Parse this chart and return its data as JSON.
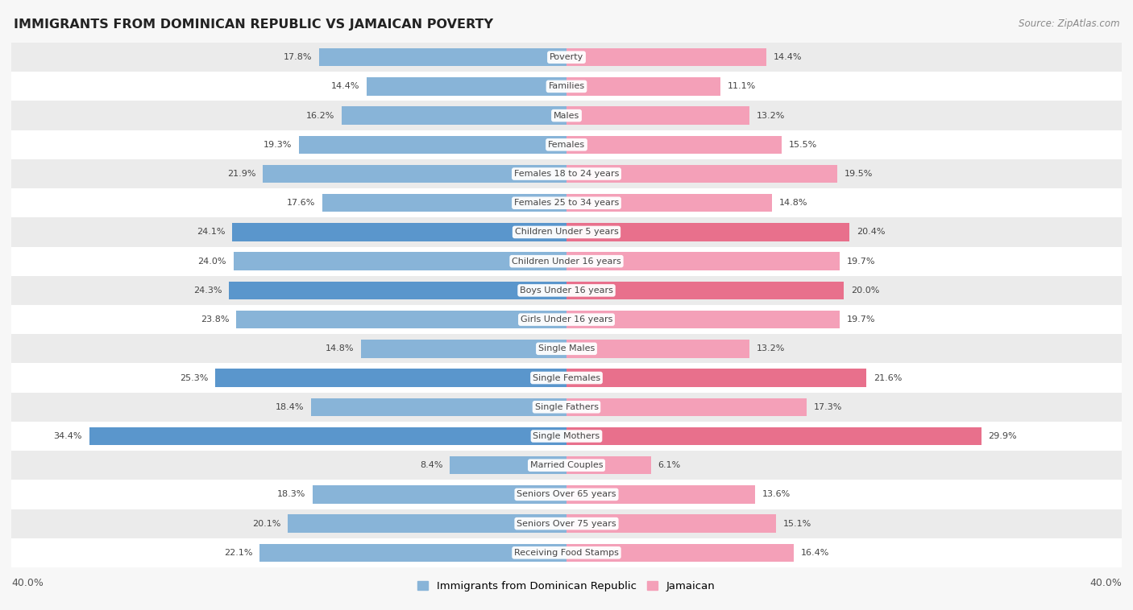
{
  "title": "IMMIGRANTS FROM DOMINICAN REPUBLIC VS JAMAICAN POVERTY",
  "source": "Source: ZipAtlas.com",
  "categories": [
    "Poverty",
    "Families",
    "Males",
    "Females",
    "Females 18 to 24 years",
    "Females 25 to 34 years",
    "Children Under 5 years",
    "Children Under 16 years",
    "Boys Under 16 years",
    "Girls Under 16 years",
    "Single Males",
    "Single Females",
    "Single Fathers",
    "Single Mothers",
    "Married Couples",
    "Seniors Over 65 years",
    "Seniors Over 75 years",
    "Receiving Food Stamps"
  ],
  "dominican": [
    17.8,
    14.4,
    16.2,
    19.3,
    21.9,
    17.6,
    24.1,
    24.0,
    24.3,
    23.8,
    14.8,
    25.3,
    18.4,
    34.4,
    8.4,
    18.3,
    20.1,
    22.1
  ],
  "jamaican": [
    14.4,
    11.1,
    13.2,
    15.5,
    19.5,
    14.8,
    20.4,
    19.7,
    20.0,
    19.7,
    13.2,
    21.6,
    17.3,
    29.9,
    6.1,
    13.6,
    15.1,
    16.4
  ],
  "dominican_color": "#88b4d8",
  "dominican_highlight_color": "#5a96cc",
  "jamaican_color": "#f4a0b8",
  "jamaican_highlight_color": "#e8708c",
  "background_color": "#f7f7f7",
  "row_even_color": "#ffffff",
  "row_odd_color": "#ebebeb",
  "xlim": 40.0,
  "legend_label_dominican": "Immigrants from Dominican Republic",
  "legend_label_jamaican": "Jamaican",
  "label_pill_color": "#ffffff",
  "highlight_rows": [
    6,
    8,
    11,
    13
  ]
}
